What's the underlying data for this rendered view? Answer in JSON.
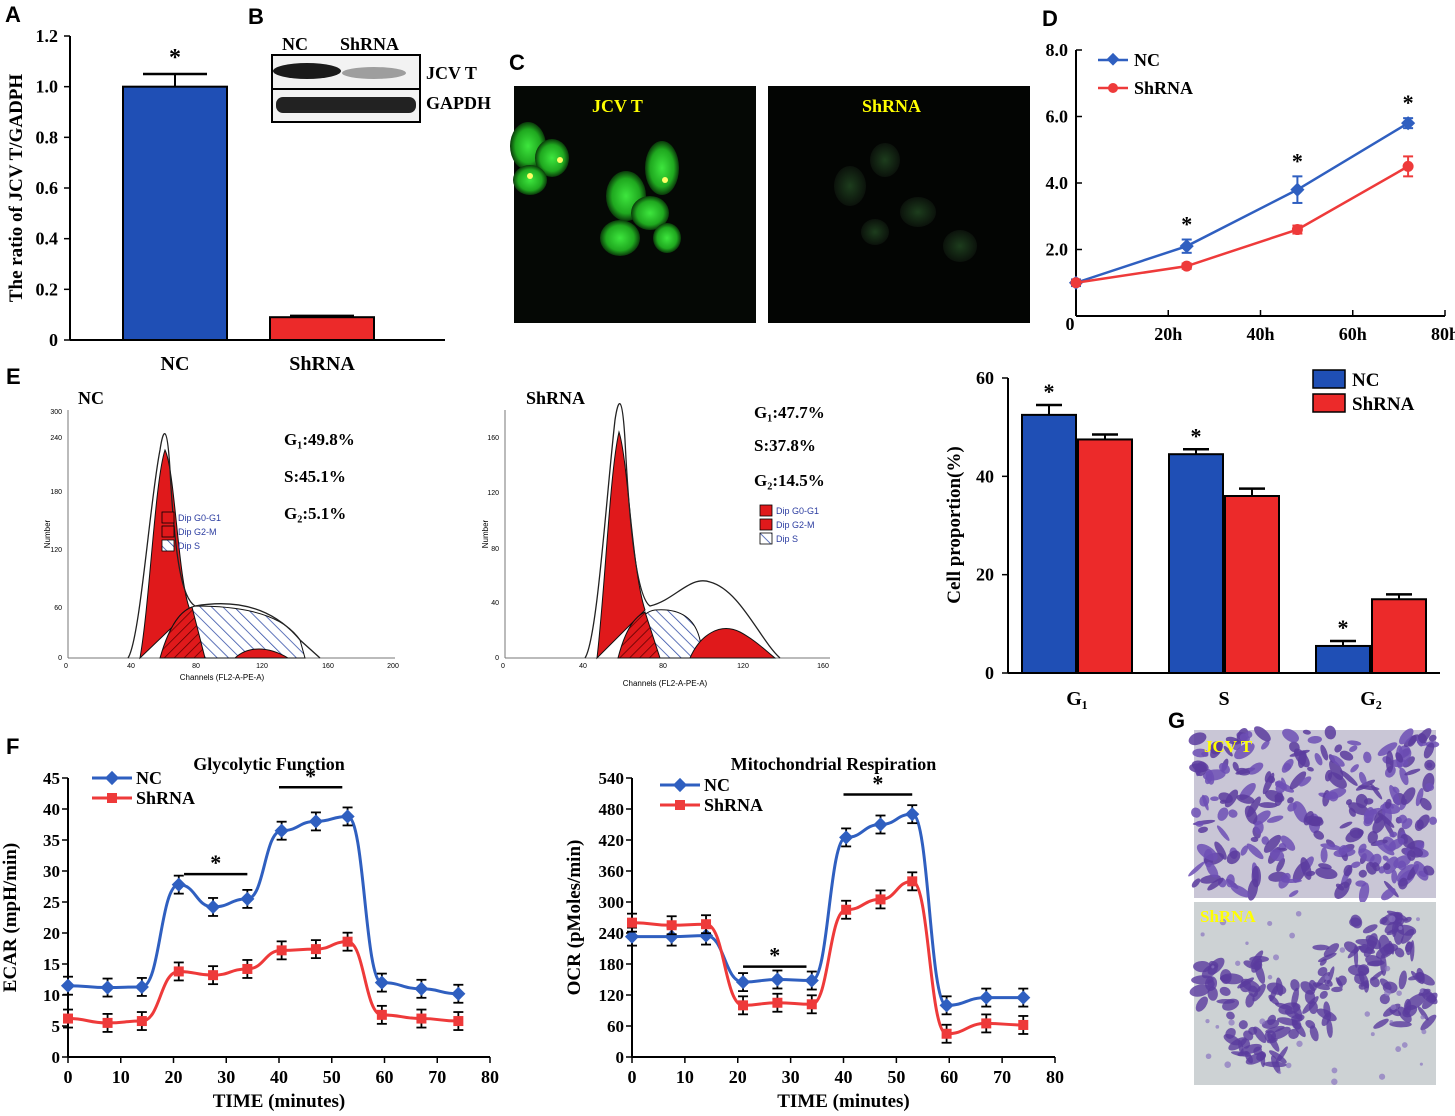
{
  "panel_letters": [
    "A",
    "B",
    "C",
    "D",
    "E",
    "F",
    "G"
  ],
  "colors": {
    "nc": "#1f4fb5",
    "shrna": "#ec2a2a",
    "nc_line": "#2f5fc0",
    "shrna_line": "#ee3a3a",
    "peak": "#e0191b",
    "s_hatch": "#3550a8"
  },
  "blot": {
    "headers": [
      "NC",
      "ShRNA"
    ],
    "rows": [
      "JCV T",
      "GAPDH"
    ]
  },
  "micro": {
    "labels": [
      "JCV T",
      "ShRNA"
    ]
  },
  "stain": {
    "labels": [
      "JCV T",
      "ShRNA"
    ]
  },
  "flow": [
    {
      "name": "NC",
      "g1": "G₁:49.8%",
      "s": "S:45.1%",
      "g2": "G₂:5.1%",
      "legend": [
        "Dip G0-G1",
        "Dip G2-M",
        "Dip S"
      ],
      "xlabel": "Channels (FL2-A-PE-A)",
      "ylabel": "Number",
      "xticks": [
        "0",
        "40",
        "80",
        "120",
        "160",
        "200"
      ],
      "yticks": [
        "0",
        "60",
        "120",
        "180",
        "240",
        "300"
      ]
    },
    {
      "name": "ShRNA",
      "g1": "G₁:47.7%",
      "s": "S:37.8%",
      "g2": "G₂:14.5%",
      "legend": [
        "Dip G0-G1",
        "Dip G2-M",
        "Dip S"
      ],
      "xlabel": "Channels (FL2-A-PE-A)",
      "ylabel": "Number",
      "xticks": [
        "0",
        "40",
        "80",
        "120",
        "160"
      ],
      "yticks": [
        "0",
        "40",
        "80",
        "120",
        "160"
      ]
    }
  ],
  "chart_data": [
    {
      "id": "A",
      "type": "bar",
      "categories": [
        "NC",
        "ShRNA"
      ],
      "values": [
        1.0,
        0.09
      ],
      "errors": [
        0.05,
        0.005
      ],
      "ylabel": "The ratio of JCV T/GADPH",
      "ylim": [
        0,
        1.2
      ],
      "yticks": [
        "0",
        "0.2",
        "0.4",
        "0.6",
        "0.8",
        "1.0",
        "1.2"
      ],
      "annotations": [
        "*"
      ]
    },
    {
      "id": "D",
      "type": "line",
      "x": [
        0,
        24,
        48,
        72
      ],
      "xticks": [
        "0",
        "20h",
        "40h",
        "60h",
        "80h"
      ],
      "xlim": [
        0,
        80
      ],
      "ylim": [
        0,
        8
      ],
      "yticks": [
        "2.0",
        "4.0",
        "6.0",
        "8.0"
      ],
      "series": [
        {
          "name": "NC",
          "values": [
            1.0,
            2.1,
            3.8,
            5.8
          ],
          "errors": [
            0.1,
            0.2,
            0.4,
            0.15
          ]
        },
        {
          "name": "ShRNA",
          "values": [
            1.0,
            1.5,
            2.6,
            4.5
          ],
          "errors": [
            0.05,
            0.08,
            0.12,
            0.3
          ]
        }
      ],
      "annotations": [
        "*",
        "*",
        "*"
      ]
    },
    {
      "id": "E-bar",
      "type": "bar",
      "categories": [
        "G₁",
        "S",
        "G₂"
      ],
      "ylabel": "Cell proportion(%)",
      "ylim": [
        0,
        60
      ],
      "yticks": [
        "0",
        "20",
        "40",
        "60"
      ],
      "series": [
        {
          "name": "NC",
          "values": [
            52.5,
            44.5,
            5.5
          ],
          "errors": [
            2.0,
            1.0,
            1.0
          ]
        },
        {
          "name": "ShRNA",
          "values": [
            47.5,
            36.0,
            15.0
          ],
          "errors": [
            1.0,
            1.5,
            1.0
          ]
        }
      ],
      "annotations": [
        "*",
        "*",
        "*"
      ]
    },
    {
      "id": "F-ECAR",
      "type": "line",
      "title": "Glycolytic Function",
      "xlabel": "TIME (minutes)",
      "ylabel": "ECAR (mpH/min)",
      "xlim": [
        0,
        80
      ],
      "ylim": [
        0,
        45
      ],
      "xticks": [
        "0",
        "10",
        "20",
        "30",
        "40",
        "50",
        "60",
        "70",
        "80"
      ],
      "yticks": [
        "0",
        "5",
        "10",
        "15",
        "20",
        "25",
        "30",
        "35",
        "40",
        "45"
      ],
      "x": [
        0,
        7.5,
        14,
        21,
        27.5,
        34,
        40.5,
        47,
        53,
        59.5,
        67,
        74
      ],
      "series": [
        {
          "name": "NC",
          "values": [
            11.5,
            11.2,
            11.3,
            27.8,
            24.2,
            25.5,
            36.5,
            38.0,
            38.8,
            12.0,
            11.0,
            10.2
          ]
        },
        {
          "name": "ShRNA",
          "values": [
            6.2,
            5.5,
            5.8,
            13.8,
            13.2,
            14.2,
            17.2,
            17.4,
            18.6,
            6.8,
            6.2,
            5.8
          ]
        }
      ],
      "annotations": [
        "*",
        "*"
      ]
    },
    {
      "id": "F-OCR",
      "type": "line",
      "title": "Mitochondrial Respiration",
      "xlabel": "TIME (minutes)",
      "ylabel": "OCR (pMoles/min)",
      "xlim": [
        0,
        80
      ],
      "ylim": [
        0,
        540
      ],
      "xticks": [
        "0",
        "10",
        "20",
        "30",
        "40",
        "50",
        "60",
        "70",
        "80"
      ],
      "yticks": [
        "0",
        "60",
        "120",
        "180",
        "240",
        "300",
        "360",
        "420",
        "480",
        "540"
      ],
      "x": [
        0,
        7.5,
        14,
        21,
        27.5,
        34,
        40.5,
        47,
        53,
        59.5,
        67,
        74
      ],
      "series": [
        {
          "name": "NC",
          "values": [
            233,
            233,
            235,
            145,
            150,
            148,
            425,
            450,
            470,
            100,
            115,
            115
          ]
        },
        {
          "name": "ShRNA",
          "values": [
            260,
            255,
            257,
            100,
            105,
            102,
            285,
            305,
            340,
            45,
            65,
            62
          ]
        }
      ],
      "annotations": [
        "*",
        "*"
      ]
    }
  ]
}
